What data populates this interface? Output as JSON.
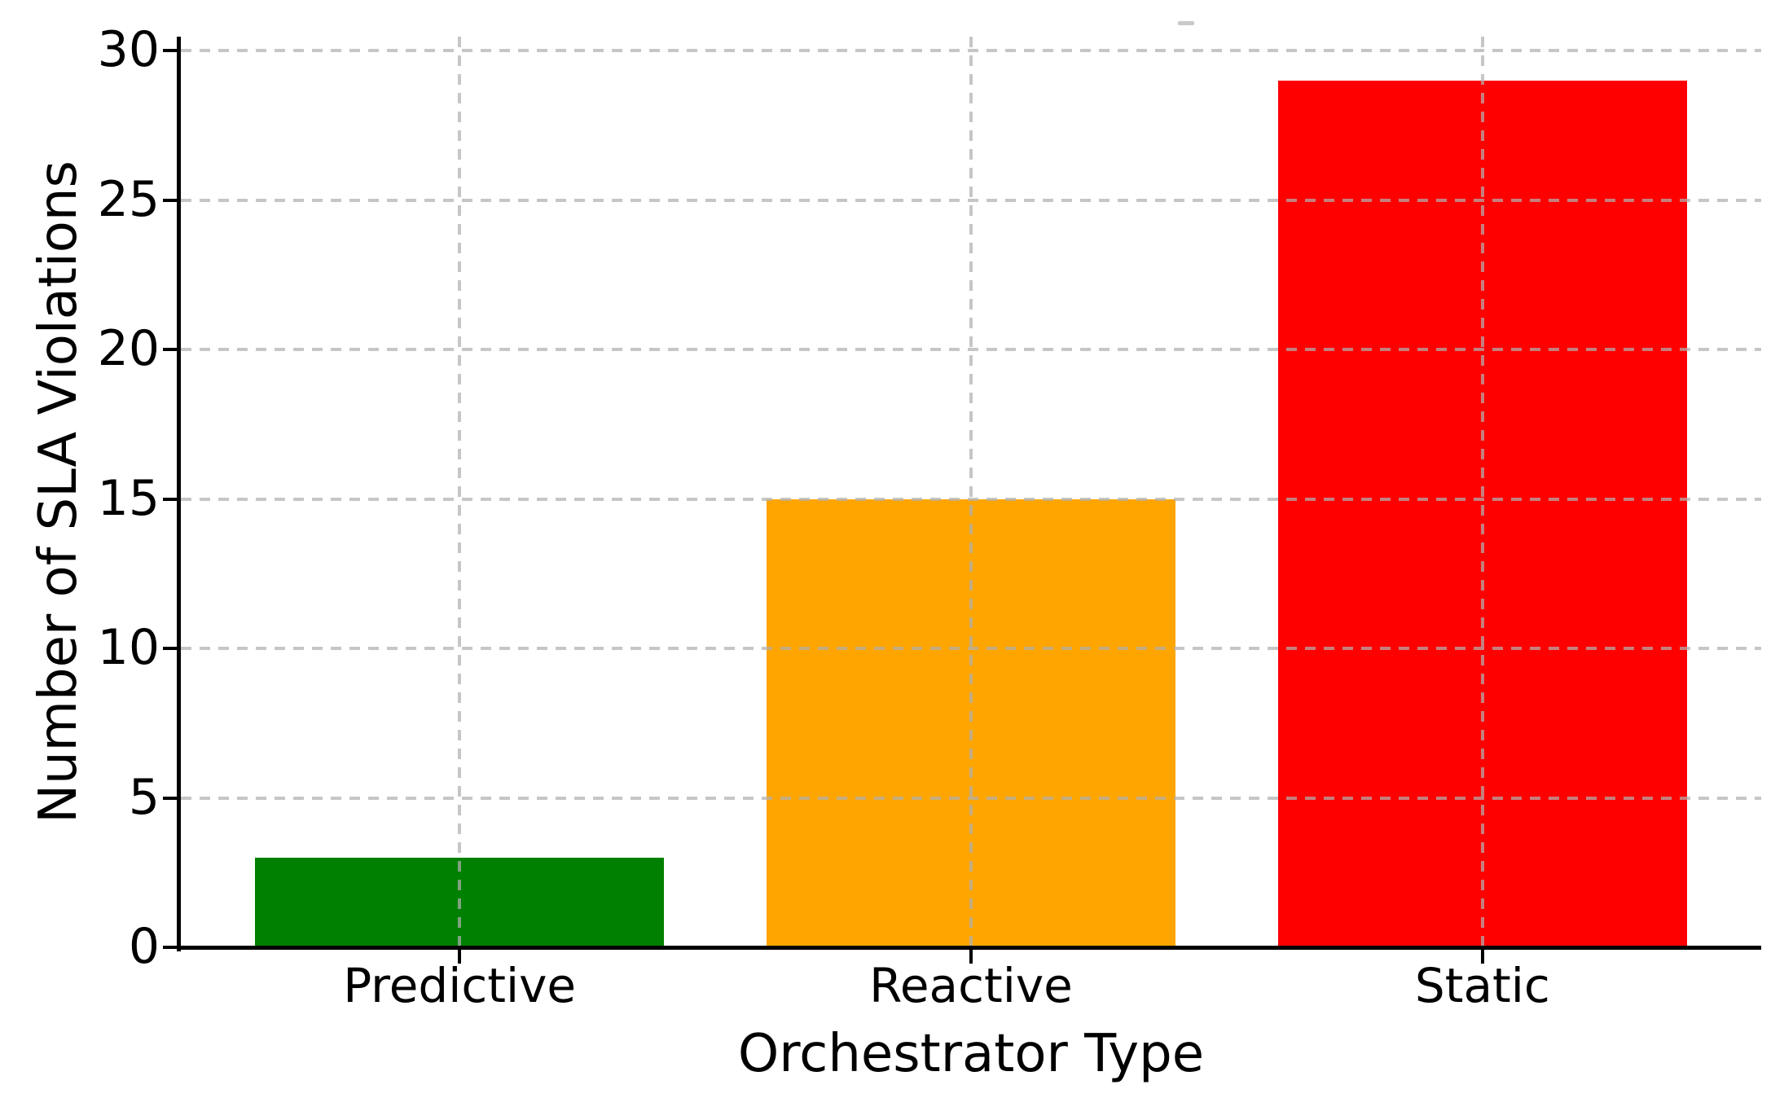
{
  "chart_data": {
    "type": "bar",
    "title": "",
    "xlabel": "Orchestrator Type",
    "ylabel": "Number of SLA Violations",
    "categories": [
      "Predictive",
      "Reactive",
      "Static"
    ],
    "values": [
      3,
      15,
      29
    ],
    "bar_colors": [
      "#008000",
      "#FFA500",
      "#FF0000"
    ],
    "ylim": [
      0,
      30
    ],
    "yticks": [
      0,
      5,
      10,
      15,
      20,
      25,
      30
    ],
    "bar_width_fraction": 0.8,
    "grid": {
      "visible": true,
      "style": "dashed",
      "color": "#b0b0b0",
      "drawn_above_bars": true
    },
    "legend": "none",
    "background_color": "#ffffff",
    "spine_color": "#000000"
  }
}
